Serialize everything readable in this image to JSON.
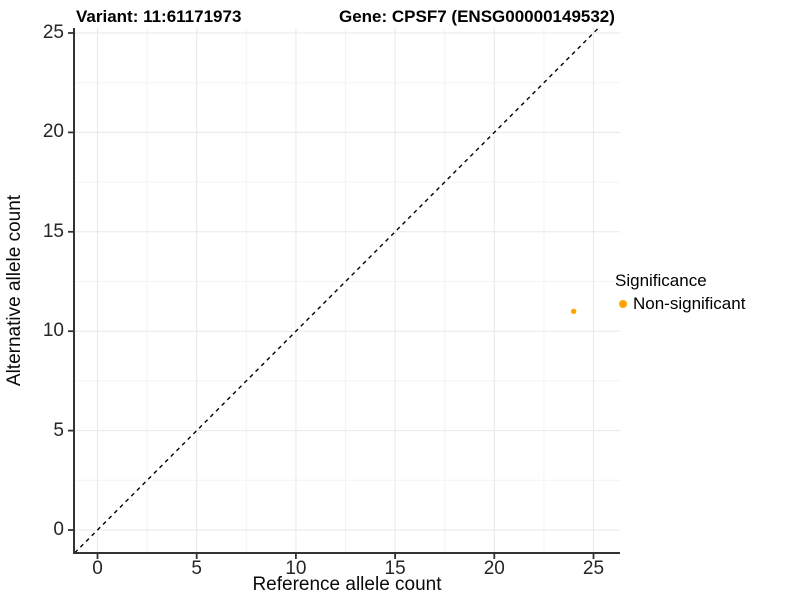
{
  "titles": {
    "variant": "Variant: 11:61171973",
    "gene": "Gene: CPSF7 (ENSG00000149532)"
  },
  "legend": {
    "title": "Significance",
    "items": [
      {
        "label": "Non-significant",
        "color": "#FFA500"
      }
    ],
    "position": "right"
  },
  "colors": {
    "background": "#ffffff",
    "major_grid": "#e8e8e8",
    "minor_grid": "#f4f4f4",
    "axis_line": "#333333",
    "tick_text": "#262626",
    "identity_line": "#000000",
    "point": "#FFA500"
  },
  "chart_data": {
    "type": "scatter",
    "title_left": "Variant: 11:61171973",
    "title_right": "Gene: CPSF7 (ENSG00000149532)",
    "xlabel": "Reference allele count",
    "ylabel": "Alternative allele count",
    "xlim": [
      0,
      25
    ],
    "ylim": [
      0,
      25
    ],
    "x_ticks": [
      0,
      5,
      10,
      15,
      20,
      25
    ],
    "y_ticks": [
      0,
      5,
      10,
      15,
      20,
      25
    ],
    "x_minor_ticks": [
      2.5,
      7.5,
      12.5,
      17.5,
      22.5
    ],
    "y_minor_ticks": [
      2.5,
      7.5,
      12.5,
      17.5,
      22.5
    ],
    "grid": true,
    "legend_position": "right",
    "series": [
      {
        "name": "Non-significant",
        "color": "#FFA500",
        "points": [
          {
            "x": 24,
            "y": 11
          }
        ]
      }
    ],
    "reference_line": {
      "kind": "abline",
      "slope": 1,
      "intercept": 0,
      "style": "dashed",
      "color": "#000000"
    }
  }
}
